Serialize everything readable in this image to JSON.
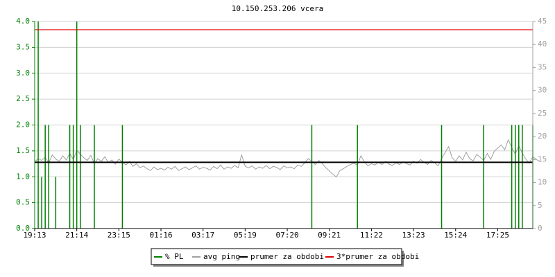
{
  "chart_data": {
    "type": "line",
    "title": "10.150.253.206 vcera",
    "xlim": [
      0,
      142
    ],
    "xticks": [
      {
        "value": 0,
        "label": "19:13"
      },
      {
        "value": 12,
        "label": "21:14"
      },
      {
        "value": 24,
        "label": "23:15"
      },
      {
        "value": 36,
        "label": "01:16"
      },
      {
        "value": 48,
        "label": "03:17"
      },
      {
        "value": 60,
        "label": "05:19"
      },
      {
        "value": 72,
        "label": "07:20"
      },
      {
        "value": 84,
        "label": "09:21"
      },
      {
        "value": 96,
        "label": "11:22"
      },
      {
        "value": 108,
        "label": "13:23"
      },
      {
        "value": 120,
        "label": "15:24"
      },
      {
        "value": 132,
        "label": "17:25"
      }
    ],
    "ylim": [
      0,
      4
    ],
    "yticks": [
      {
        "value": 0,
        "label": "0.0"
      },
      {
        "value": 0.5,
        "label": "0.5"
      },
      {
        "value": 1,
        "label": "1.0"
      },
      {
        "value": 1.5,
        "label": "1.5"
      },
      {
        "value": 2,
        "label": "2.0"
      },
      {
        "value": 2.5,
        "label": "2.5"
      },
      {
        "value": 3,
        "label": "3.0"
      },
      {
        "value": 3.5,
        "label": "3.5"
      },
      {
        "value": 4,
        "label": "4.0"
      }
    ],
    "y2lim": [
      0,
      45
    ],
    "y2ticks": [
      0,
      5,
      10,
      15,
      20,
      25,
      30,
      35,
      40,
      45
    ],
    "grid": true,
    "legend": "bottom",
    "series": [
      {
        "name": "% PL",
        "color": "#008000",
        "style": "impulses",
        "axis": "y",
        "values": [
          0,
          4,
          1,
          2,
          2,
          0,
          1,
          0,
          0,
          0,
          2,
          2,
          4,
          2,
          0,
          0,
          0,
          2,
          0,
          0,
          0,
          0,
          0,
          0,
          0,
          2,
          0,
          0,
          0,
          0,
          0,
          0,
          0,
          0,
          0,
          0,
          0,
          0,
          0,
          0,
          0,
          0,
          0,
          0,
          0,
          0,
          0,
          0,
          0,
          0,
          0,
          0,
          0,
          0,
          0,
          0,
          0,
          0,
          0,
          0,
          0,
          0,
          0,
          0,
          0,
          0,
          0,
          0,
          0,
          0,
          0,
          0,
          0,
          0,
          0,
          0,
          0,
          0,
          0,
          2,
          0,
          0,
          0,
          0,
          0,
          0,
          0,
          0,
          0,
          0,
          0,
          0,
          2,
          0,
          0,
          0,
          0,
          0,
          0,
          0,
          0,
          0,
          0,
          0,
          0,
          0,
          0,
          0,
          0,
          0,
          0,
          0,
          0,
          0,
          0,
          0,
          2,
          0,
          0,
          0,
          0,
          0,
          0,
          0,
          0,
          0,
          0,
          0,
          2,
          0,
          0,
          0,
          0,
          0,
          0,
          0,
          2,
          2,
          2,
          2,
          0,
          0,
          2
        ]
      },
      {
        "name": "avg ping",
        "color": "#a0a0a0",
        "style": "line",
        "axis": "y2",
        "values": [
          14.5,
          15.2,
          14.8,
          15.5,
          14.2,
          16.0,
          15.1,
          14.6,
          15.8,
          14.9,
          16.3,
          15.0,
          17.0,
          16.2,
          15.4,
          14.8,
          15.9,
          14.1,
          15.2,
          14.6,
          15.6,
          14.3,
          14.9,
          14.0,
          15.1,
          14.4,
          13.8,
          14.6,
          13.5,
          14.1,
          13.2,
          13.6,
          13.0,
          12.6,
          13.4,
          12.8,
          13.1,
          12.7,
          13.3,
          12.9,
          13.5,
          12.6,
          13.0,
          13.4,
          12.8,
          13.2,
          13.6,
          12.9,
          13.3,
          13.1,
          12.7,
          13.5,
          13.0,
          13.8,
          12.9,
          13.4,
          13.1,
          13.7,
          13.2,
          16.0,
          13.5,
          13.2,
          13.6,
          12.9,
          13.4,
          13.1,
          13.7,
          13.0,
          13.5,
          13.3,
          12.8,
          13.6,
          13.2,
          13.4,
          13.0,
          13.8,
          13.5,
          14.3,
          15.2,
          14.6,
          13.9,
          14.8,
          14.1,
          13.2,
          12.5,
          11.8,
          11.2,
          12.6,
          13.0,
          13.5,
          13.9,
          14.2,
          13.8,
          15.8,
          14.5,
          13.6,
          14.1,
          13.8,
          14.4,
          13.9,
          14.6,
          14.0,
          13.7,
          14.3,
          13.9,
          14.5,
          14.1,
          13.8,
          14.6,
          14.2,
          15.0,
          14.4,
          13.9,
          14.8,
          14.3,
          13.6,
          15.2,
          16.5,
          17.8,
          15.4,
          14.6,
          15.8,
          14.9,
          16.6,
          15.2,
          14.7,
          16.1,
          15.5,
          14.8,
          16.3,
          15.0,
          16.8,
          17.5,
          18.2,
          17.1,
          19.3,
          17.6,
          16.2,
          18.0,
          16.4,
          15.1,
          14.2,
          15.6,
          15.0,
          14.6
        ]
      },
      {
        "name": "prumer za obdobi",
        "color": "#000000",
        "style": "hline",
        "axis": "y2",
        "values": [
          14.4
        ]
      },
      {
        "name": "3*prumer za obdobi",
        "color": "#e00000",
        "style": "hline",
        "axis": "y2",
        "values": [
          43.2
        ]
      }
    ]
  }
}
